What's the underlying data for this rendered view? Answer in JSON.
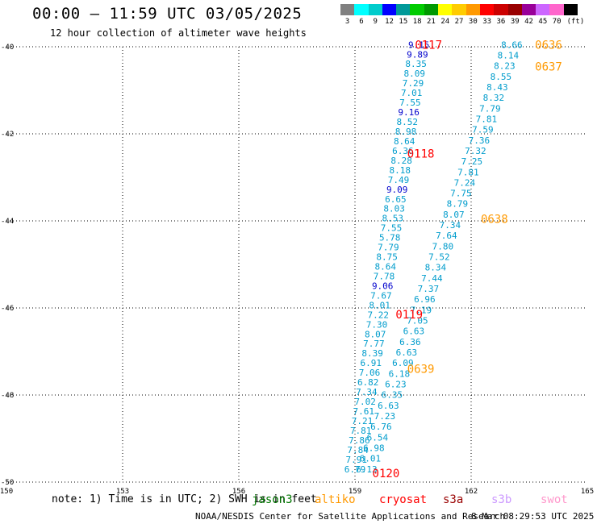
{
  "title": "00:00 – 11:59 UTC 03/05/2025",
  "subtitle": "12 hour collection of altimeter wave heights",
  "colorbar": {
    "colors": [
      "#808080",
      "#00ffff",
      "#00cccc",
      "#0000ff",
      "#009999",
      "#00cc00",
      "#009900",
      "#ffff00",
      "#ffcc00",
      "#ff9900",
      "#ff0000",
      "#cc0000",
      "#990000",
      "#990099",
      "#cc66ff",
      "#ff66cc",
      "#000000"
    ],
    "labels": [
      "3",
      "6",
      "9",
      "12",
      "15",
      "18",
      "21",
      "24",
      "27",
      "30",
      "33",
      "36",
      "39",
      "42",
      "45",
      "70",
      "(ft)"
    ]
  },
  "map": {
    "lon_labels": [
      "150",
      "153",
      "156",
      "159",
      "162",
      "165"
    ],
    "lat_labels": [
      "-40",
      "-42",
      "-44",
      "-46",
      "-48",
      "-50"
    ],
    "lon_range": [
      150,
      165
    ],
    "lat_range": [
      -50,
      -40
    ],
    "grid": "dotted"
  },
  "chart_data": {
    "type": "scatter",
    "x_axis": "longitude",
    "y_axis": "latitude",
    "pass_labels": [
      {
        "text": "0117",
        "lon": 160.9,
        "lat": -39.95,
        "color": "#ff0000"
      },
      {
        "text": "0636",
        "lon": 164.0,
        "lat": -39.95,
        "color": "#ff9900"
      },
      {
        "text": "0637",
        "lon": 164.0,
        "lat": -40.45,
        "color": "#ff9900"
      },
      {
        "text": "0118",
        "lon": 160.7,
        "lat": -42.45,
        "color": "#ff0000"
      },
      {
        "text": "0638",
        "lon": 162.6,
        "lat": -43.95,
        "color": "#ff9900"
      },
      {
        "text": "0119",
        "lon": 160.4,
        "lat": -46.15,
        "color": "#ff0000"
      },
      {
        "text": "0639",
        "lon": 160.7,
        "lat": -47.4,
        "color": "#ff9900"
      },
      {
        "text": "0120",
        "lon": 159.8,
        "lat": -49.8,
        "color": "#ff0000"
      }
    ],
    "tracks": [
      {
        "lon_start": 160.65,
        "lat_start": -39.95,
        "lon_end": 159.0,
        "lat_end": -49.7,
        "values": [
          "9.15",
          "9.89",
          "8.35",
          "8.09",
          "7.29",
          "7.01",
          "7.55",
          "9.16",
          "8.52",
          "8.98",
          "8.64",
          "6.36",
          "8.28",
          "8.18",
          "7.49",
          "9.09",
          "6.65",
          "8.03",
          "8.53",
          "7.55",
          "5.78",
          "7.79",
          "8.75",
          "8.64",
          "7.78",
          "9.06",
          "7.67",
          "8.01",
          "7.22",
          "7.30",
          "8.07",
          "7.77",
          "8.39",
          "6.91",
          "7.06",
          "6.82",
          "7.34",
          "7.02",
          "7.61",
          "7.21",
          "7.81",
          "7.86",
          "7.84",
          "7.91",
          "6.79"
        ]
      },
      {
        "lon_start": 163.05,
        "lat_start": -39.95,
        "lon_end": 159.3,
        "lat_end": -49.7,
        "values": [
          "8.66",
          "8.14",
          "8.23",
          "8.55",
          "8.43",
          "8.32",
          "7.79",
          "7.81",
          "7.59",
          "7.36",
          "7.32",
          "7.25",
          "7.81",
          "7.24",
          "7.75",
          "8.79",
          "8.07",
          "7.34",
          "7.64",
          "7.80",
          "7.52",
          "8.34",
          "7.44",
          "7.37",
          "6.96",
          "7.19",
          "7.05",
          "6.63",
          "6.36",
          "6.63",
          "6.09",
          "6.18",
          "6.23",
          "6.35",
          "6.63",
          "7.23",
          "6.76",
          "6.54",
          "6.98",
          "6.01",
          "6.13"
        ]
      }
    ]
  },
  "note": "note: 1) Time is in UTC; 2) SWH is in feet",
  "legend": [
    {
      "label": "jason3",
      "color": "#007700"
    },
    {
      "label": "altiko",
      "color": "#ff9900"
    },
    {
      "label": "cryosat",
      "color": "#ff0000"
    },
    {
      "label": "s3a",
      "color": "#990000"
    },
    {
      "label": "s3b",
      "color": "#cc99ff"
    },
    {
      "label": "swot",
      "color": "#ff99cc"
    }
  ],
  "credit": "NOAA/NESDIS Center for Satellite Applications and Research",
  "timestamp": "8 Mar 08:29:53 UTC 2025"
}
